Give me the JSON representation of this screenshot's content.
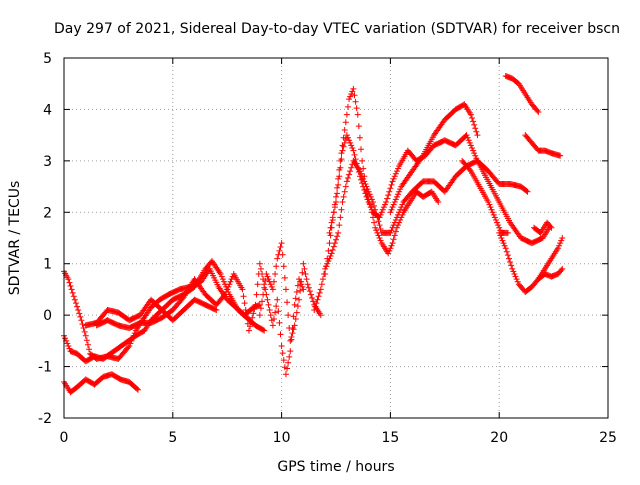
{
  "chart_data": {
    "type": "scatter",
    "title": "Day 297 of 2021, Sidereal Day-to-day VTEC variation (SDTVAR) for receiver bscn",
    "xlabel": "GPS time / hours",
    "ylabel": "SDTVAR / TECUs",
    "xlim": [
      0,
      25
    ],
    "ylim": [
      -2,
      5
    ],
    "x_ticks": [
      "0",
      "5",
      "10",
      "15",
      "20",
      "25"
    ],
    "y_ticks": [
      "-2",
      "-1",
      "0",
      "1",
      "2",
      "3",
      "4",
      "5"
    ],
    "grid": true,
    "marker": "+",
    "color": "#ff0000",
    "series": [
      {
        "points": [
          [
            0.0,
            0.85
          ],
          [
            0.2,
            0.7
          ],
          [
            0.5,
            0.3
          ],
          [
            0.8,
            -0.1
          ],
          [
            1.0,
            -0.4
          ],
          [
            1.2,
            -0.75
          ],
          [
            1.5,
            -0.85
          ],
          [
            2.0,
            -0.8
          ],
          [
            2.5,
            -0.85
          ],
          [
            3.0,
            -0.6
          ],
          [
            3.3,
            -0.3
          ],
          [
            3.6,
            -0.1
          ],
          [
            4.0,
            0.15
          ],
          [
            4.4,
            0.3
          ],
          [
            4.8,
            0.4
          ],
          [
            5.3,
            0.5
          ],
          [
            5.8,
            0.55
          ],
          [
            6.3,
            0.65
          ],
          [
            6.7,
            0.9
          ],
          [
            7.1,
            0.55
          ],
          [
            7.5,
            0.3
          ],
          [
            7.9,
            0.15
          ],
          [
            8.3,
            0.0
          ],
          [
            8.7,
            0.15
          ],
          [
            9.0,
            0.2
          ]
        ]
      },
      {
        "points": [
          [
            0.0,
            -0.4
          ],
          [
            0.3,
            -0.7
          ],
          [
            0.6,
            -0.75
          ],
          [
            1.0,
            -0.9
          ],
          [
            1.4,
            -0.8
          ],
          [
            1.8,
            -0.85
          ],
          [
            2.3,
            -0.7
          ],
          [
            2.8,
            -0.55
          ],
          [
            3.3,
            -0.4
          ],
          [
            3.7,
            -0.3
          ],
          [
            4.0,
            -0.1
          ],
          [
            4.5,
            0.1
          ],
          [
            5.0,
            0.3
          ],
          [
            5.5,
            0.4
          ],
          [
            6.0,
            0.55
          ],
          [
            6.5,
            0.9
          ],
          [
            6.8,
            1.05
          ],
          [
            7.2,
            0.8
          ],
          [
            7.6,
            0.4
          ],
          [
            8.0,
            0.1
          ],
          [
            8.4,
            -0.05
          ],
          [
            8.8,
            -0.2
          ],
          [
            9.2,
            -0.3
          ]
        ]
      },
      {
        "points": [
          [
            0.0,
            -1.3
          ],
          [
            0.3,
            -1.5
          ],
          [
            0.6,
            -1.4
          ],
          [
            1.0,
            -1.25
          ],
          [
            1.4,
            -1.35
          ],
          [
            1.8,
            -1.2
          ],
          [
            2.2,
            -1.15
          ],
          [
            2.6,
            -1.25
          ],
          [
            3.0,
            -1.3
          ],
          [
            3.4,
            -1.45
          ]
        ]
      },
      {
        "points": [
          [
            1.0,
            -0.2
          ],
          [
            1.5,
            -0.15
          ],
          [
            2.0,
            0.1
          ],
          [
            2.5,
            0.05
          ],
          [
            3.0,
            -0.1
          ],
          [
            3.5,
            0.0
          ],
          [
            4.0,
            0.3
          ],
          [
            4.5,
            0.1
          ],
          [
            5.0,
            -0.1
          ],
          [
            5.5,
            0.1
          ],
          [
            6.0,
            0.3
          ],
          [
            6.5,
            0.2
          ],
          [
            7.0,
            0.1
          ]
        ]
      },
      {
        "points": [
          [
            1.5,
            -0.2
          ],
          [
            2.0,
            -0.1
          ],
          [
            2.5,
            -0.2
          ],
          [
            3.0,
            -0.25
          ],
          [
            3.5,
            -0.15
          ],
          [
            4.0,
            -0.15
          ],
          [
            4.5,
            -0.05
          ],
          [
            5.0,
            0.1
          ],
          [
            5.5,
            0.35
          ],
          [
            6.0,
            0.7
          ],
          [
            6.5,
            0.4
          ],
          [
            7.0,
            0.2
          ],
          [
            7.4,
            0.4
          ],
          [
            7.8,
            0.8
          ],
          [
            8.2,
            0.5
          ],
          [
            8.5,
            -0.3
          ],
          [
            8.8,
            0.2
          ],
          [
            9.0,
            1.0
          ],
          [
            9.3,
            0.4
          ],
          [
            9.6,
            -0.2
          ],
          [
            9.8,
            0.3
          ],
          [
            10.0,
            -0.6
          ],
          [
            10.2,
            -1.15
          ],
          [
            10.4,
            -0.7
          ],
          [
            10.6,
            0.2
          ],
          [
            10.8,
            0.7
          ],
          [
            11.0,
            0.5
          ]
        ]
      },
      {
        "points": [
          [
            9.0,
            0.0
          ],
          [
            9.3,
            0.8
          ],
          [
            9.6,
            0.5
          ],
          [
            9.8,
            1.1
          ],
          [
            10.0,
            1.4
          ],
          [
            10.2,
            0.5
          ],
          [
            10.4,
            -0.5
          ],
          [
            10.6,
            -0.2
          ],
          [
            10.8,
            0.3
          ],
          [
            11.0,
            1.0
          ],
          [
            11.2,
            0.6
          ],
          [
            11.5,
            0.2
          ],
          [
            11.8,
            0.0
          ]
        ]
      },
      {
        "points": [
          [
            11.5,
            0.1
          ],
          [
            11.8,
            0.5
          ],
          [
            12.0,
            0.9
          ],
          [
            12.3,
            1.2
          ],
          [
            12.6,
            1.6
          ],
          [
            12.8,
            2.2
          ],
          [
            13.0,
            2.6
          ],
          [
            13.3,
            3.0
          ],
          [
            13.6,
            2.8
          ],
          [
            13.9,
            2.5
          ],
          [
            14.2,
            2.2
          ],
          [
            14.6,
            1.6
          ],
          [
            15.0,
            1.6
          ],
          [
            15.3,
            1.9
          ],
          [
            15.6,
            2.2
          ],
          [
            16.0,
            2.4
          ],
          [
            16.5,
            2.6
          ],
          [
            17.0,
            2.6
          ],
          [
            17.5,
            2.4
          ],
          [
            18.0,
            2.7
          ],
          [
            18.5,
            2.9
          ],
          [
            19.0,
            3.0
          ],
          [
            19.5,
            2.8
          ],
          [
            20.0,
            2.55
          ],
          [
            20.5,
            2.55
          ],
          [
            21.0,
            2.5
          ],
          [
            21.3,
            2.4
          ]
        ]
      },
      {
        "points": [
          [
            12.0,
            0.8
          ],
          [
            12.3,
            1.7
          ],
          [
            12.5,
            2.3
          ],
          [
            12.7,
            3.0
          ],
          [
            12.9,
            3.6
          ],
          [
            13.1,
            4.2
          ],
          [
            13.3,
            4.4
          ],
          [
            13.5,
            3.9
          ],
          [
            13.7,
            3.0
          ],
          [
            13.9,
            2.4
          ],
          [
            14.1,
            2.1
          ],
          [
            14.3,
            1.7
          ],
          [
            14.6,
            1.4
          ],
          [
            14.9,
            1.2
          ],
          [
            15.1,
            1.4
          ],
          [
            15.3,
            1.7
          ],
          [
            15.6,
            2.0
          ],
          [
            15.9,
            2.2
          ],
          [
            16.2,
            2.4
          ],
          [
            16.5,
            2.3
          ],
          [
            16.9,
            2.4
          ],
          [
            17.2,
            2.2
          ]
        ]
      },
      {
        "points": [
          [
            12.2,
            1.6
          ],
          [
            12.5,
            2.2
          ],
          [
            12.8,
            3.2
          ],
          [
            13.0,
            3.5
          ],
          [
            13.3,
            3.2
          ],
          [
            13.6,
            2.7
          ],
          [
            13.9,
            2.3
          ],
          [
            14.2,
            2.0
          ],
          [
            14.5,
            1.9
          ],
          [
            14.8,
            2.2
          ],
          [
            15.1,
            2.6
          ],
          [
            15.4,
            2.9
          ],
          [
            15.8,
            3.2
          ],
          [
            16.2,
            3.0
          ],
          [
            16.6,
            3.1
          ],
          [
            17.0,
            3.3
          ],
          [
            17.5,
            3.4
          ],
          [
            18.0,
            3.3
          ],
          [
            18.5,
            3.5
          ],
          [
            19.0,
            3.0
          ],
          [
            19.5,
            2.6
          ],
          [
            20.0,
            2.2
          ],
          [
            20.5,
            1.8
          ],
          [
            21.0,
            1.5
          ],
          [
            21.5,
            1.4
          ],
          [
            22.0,
            1.5
          ],
          [
            22.3,
            1.7
          ]
        ]
      },
      {
        "points": [
          [
            15.0,
            2.0
          ],
          [
            15.5,
            2.5
          ],
          [
            16.0,
            2.8
          ],
          [
            16.5,
            3.1
          ],
          [
            17.0,
            3.5
          ],
          [
            17.5,
            3.8
          ],
          [
            18.0,
            4.0
          ],
          [
            18.4,
            4.1
          ],
          [
            18.7,
            3.9
          ],
          [
            19.0,
            3.5
          ]
        ]
      },
      {
        "points": [
          [
            18.3,
            3.0
          ],
          [
            18.7,
            2.8
          ],
          [
            19.1,
            2.5
          ],
          [
            19.5,
            2.2
          ],
          [
            19.8,
            1.9
          ],
          [
            20.1,
            1.6
          ],
          [
            20.4,
            1.6
          ]
        ]
      },
      {
        "points": [
          [
            20.3,
            4.65
          ],
          [
            20.6,
            4.6
          ],
          [
            20.9,
            4.5
          ],
          [
            21.2,
            4.3
          ],
          [
            21.5,
            4.1
          ],
          [
            21.8,
            3.95
          ]
        ]
      },
      {
        "points": [
          [
            21.2,
            3.5
          ],
          [
            21.5,
            3.35
          ],
          [
            21.8,
            3.2
          ],
          [
            22.1,
            3.2
          ],
          [
            22.4,
            3.15
          ],
          [
            22.8,
            3.1
          ]
        ]
      },
      {
        "points": [
          [
            21.6,
            1.7
          ],
          [
            21.9,
            1.6
          ],
          [
            22.2,
            1.8
          ],
          [
            22.4,
            1.7
          ]
        ]
      },
      {
        "points": [
          [
            20.0,
            1.6
          ],
          [
            20.3,
            1.3
          ],
          [
            20.6,
            0.9
          ],
          [
            20.9,
            0.6
          ],
          [
            21.2,
            0.45
          ],
          [
            21.5,
            0.55
          ],
          [
            21.8,
            0.7
          ],
          [
            22.1,
            0.9
          ],
          [
            22.4,
            1.1
          ],
          [
            22.7,
            1.3
          ],
          [
            22.9,
            1.5
          ]
        ]
      },
      {
        "points": [
          [
            21.8,
            0.7
          ],
          [
            22.1,
            0.8
          ],
          [
            22.4,
            0.75
          ],
          [
            22.7,
            0.8
          ],
          [
            22.9,
            0.9
          ]
        ]
      }
    ]
  }
}
